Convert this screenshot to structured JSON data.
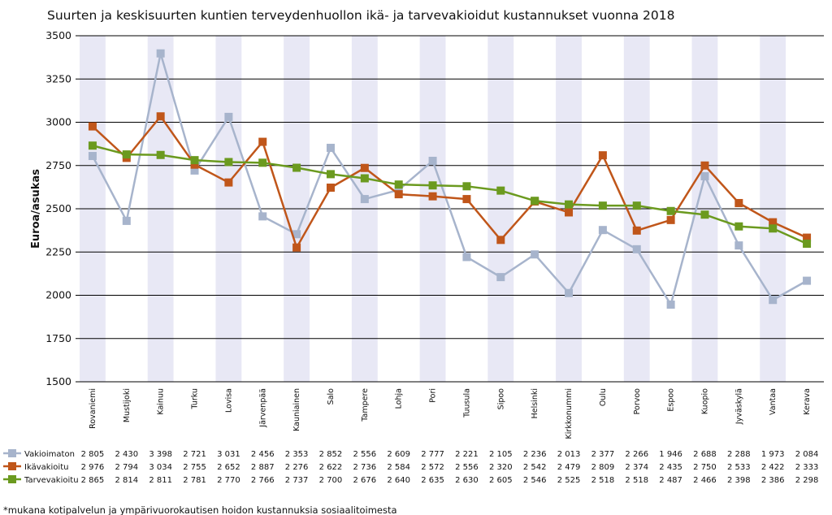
{
  "chart_data": {
    "type": "line",
    "title": "Suurten ja keskisuurten kuntien terveydenhuollon ikä- ja tarvevakioidut kustannukset vuonna 2018",
    "ylabel": "Euroa/asukas",
    "xlabel": "",
    "ylim": [
      1500,
      3500
    ],
    "yticks": [
      "1500",
      "1750",
      "2000",
      "2250",
      "2500",
      "2750",
      "3000",
      "3250",
      "3500"
    ],
    "grid": true,
    "categories": [
      "Rovaniemi",
      "Mustijoki",
      "Kainuu",
      "Turku",
      "Lovisa",
      "Järvenpää",
      "Kauniainen",
      "Salo",
      "Tampere",
      "Lohja",
      "Pori",
      "Tuusula",
      "Sipoo",
      "Helsinki",
      "Kirkkonummi",
      "Oulu",
      "Porvoo",
      "Espoo",
      "Kuopio",
      "Jyväskylä",
      "Vantaa",
      "Kerava"
    ],
    "series": [
      {
        "name": "Vakioimaton",
        "color": "#a7b4cc",
        "values": [
          2805,
          2430,
          3398,
          2721,
          3031,
          2456,
          2353,
          2852,
          2556,
          2609,
          2777,
          2221,
          2105,
          2236,
          2013,
          2377,
          2266,
          1946,
          2688,
          2288,
          1973,
          2084
        ],
        "labels": [
          "2 805",
          "2 430",
          "3 398",
          "2 721",
          "3 031",
          "2 456",
          "2 353",
          "2 852",
          "2 556",
          "2 609",
          "2 777",
          "2 221",
          "2 105",
          "2 236",
          "2 013",
          "2 377",
          "2 266",
          "1 946",
          "2 688",
          "2 288",
          "1 973",
          "2 084"
        ]
      },
      {
        "name": "Ikävakioitu",
        "color": "#c0561a",
        "values": [
          2976,
          2794,
          3034,
          2755,
          2652,
          2887,
          2276,
          2622,
          2736,
          2584,
          2572,
          2556,
          2320,
          2542,
          2479,
          2809,
          2374,
          2435,
          2750,
          2533,
          2422,
          2333
        ],
        "labels": [
          "2 976",
          "2 794",
          "3 034",
          "2 755",
          "2 652",
          "2 887",
          "2 276",
          "2 622",
          "2 736",
          "2 584",
          "2 572",
          "2 556",
          "2 320",
          "2 542",
          "2 479",
          "2 809",
          "2 374",
          "2 435",
          "2 750",
          "2 533",
          "2 422",
          "2 333"
        ]
      },
      {
        "name": "Tarvevakioitu",
        "color": "#6b9a1f",
        "values": [
          2865,
          2814,
          2811,
          2781,
          2770,
          2766,
          2737,
          2700,
          2676,
          2640,
          2635,
          2630,
          2605,
          2546,
          2525,
          2518,
          2518,
          2487,
          2466,
          2398,
          2386,
          2298
        ],
        "labels": [
          "2 865",
          "2 814",
          "2 811",
          "2 781",
          "2 770",
          "2 766",
          "2 737",
          "2 700",
          "2 676",
          "2 640",
          "2 635",
          "2 630",
          "2 605",
          "2 546",
          "2 525",
          "2 518",
          "2 518",
          "2 487",
          "2 466",
          "2 398",
          "2 386",
          "2 298"
        ]
      }
    ],
    "footnote": "*mukana kotipalvelun ja ympärivuorokautisen hoidon kustannuksia sosiaalitoimesta",
    "colors": {
      "band": "#e8e8f5",
      "grid": "#000000"
    }
  }
}
